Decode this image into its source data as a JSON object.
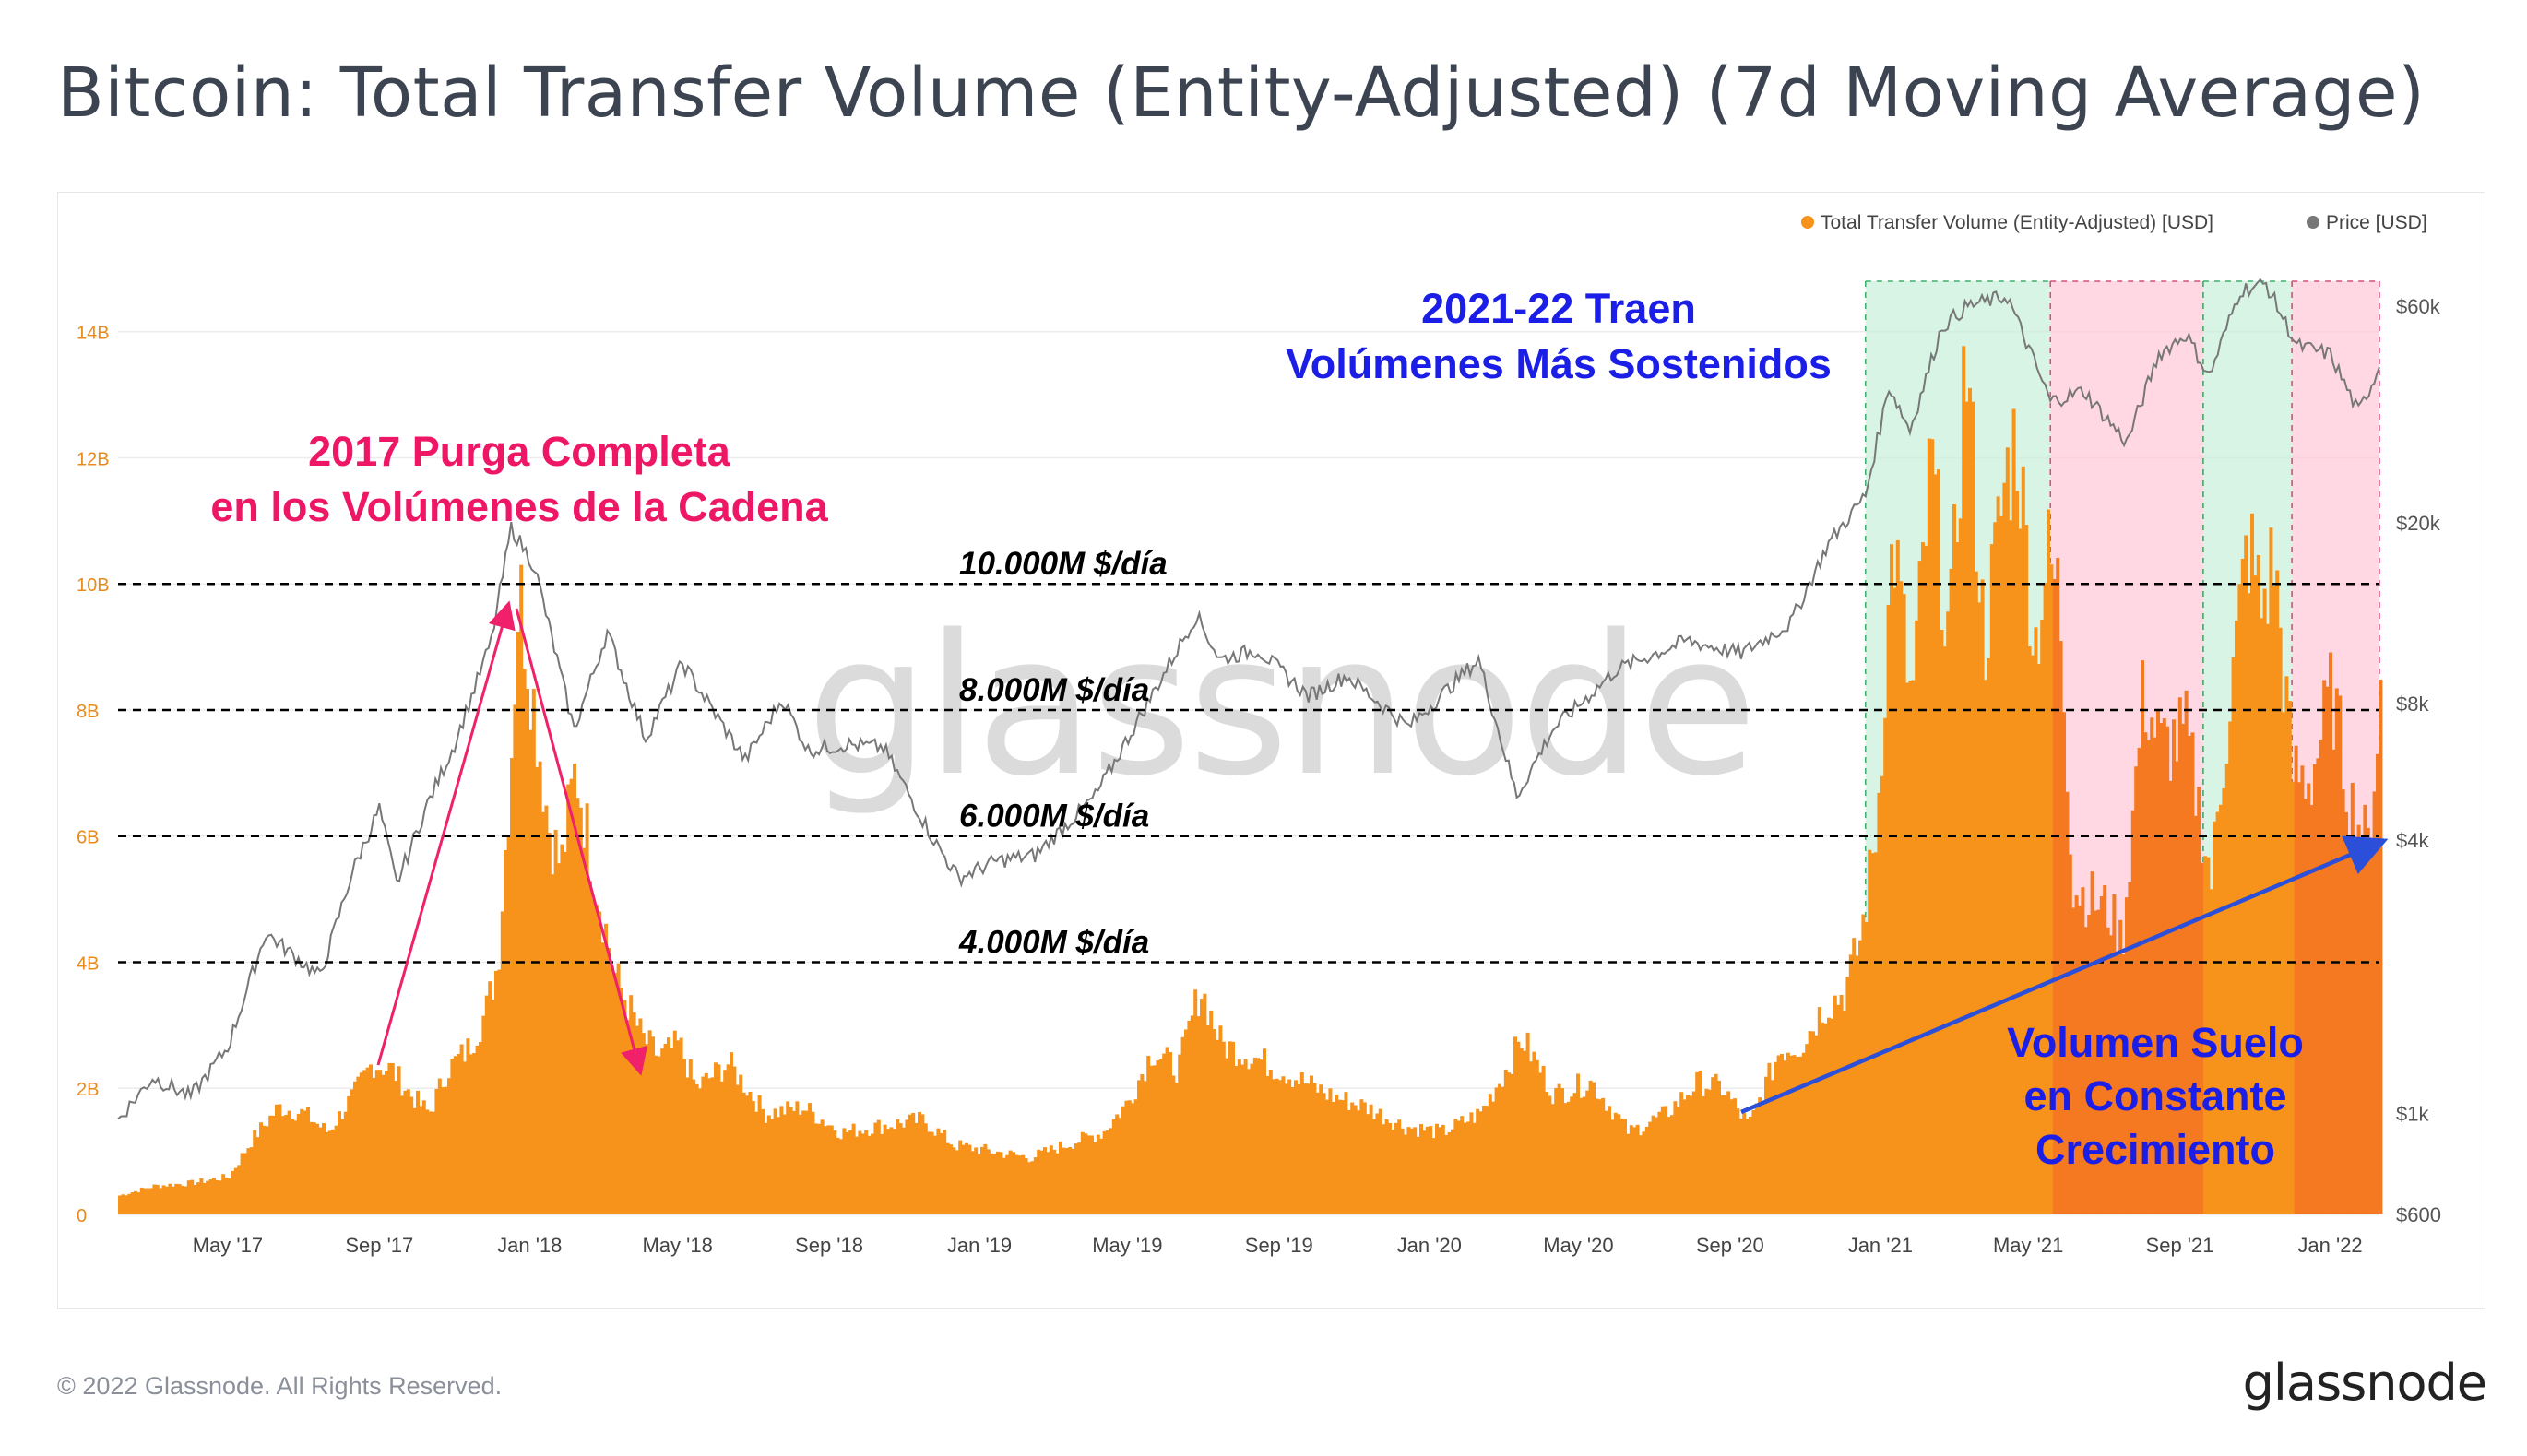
{
  "title": "Bitcoin: Total Transfer Volume (Entity-Adjusted) (7d Moving Average)",
  "footer": {
    "copyright": "© 2022 Glassnode. All Rights Reserved.",
    "brand": "glassnode"
  },
  "watermark": "glassnode",
  "colors": {
    "volume": "#f7931a",
    "volume_dark": "#f47920",
    "price": "#777777",
    "green_band": "#c8f0d9",
    "pink_band": "#ffc7d9",
    "red_text": "#ee1766",
    "blue_text": "#1b1ee6",
    "trend_arrow": "#2b4fd8",
    "pink_arrow": "#f0206b"
  },
  "chart_data": {
    "type": "bar",
    "x_axis": {
      "tick_labels": [
        "May '17",
        "Sep '17",
        "Jan '18",
        "May '18",
        "Sep '18",
        "Jan '19",
        "May '19",
        "Sep '19",
        "Jan '20",
        "May '20",
        "Sep '20",
        "Jan '21",
        "May '21",
        "Sep '21",
        "Jan '22"
      ],
      "range": [
        "2017-02-01",
        "2022-02-10"
      ]
    },
    "y_left": {
      "tick_labels": [
        "0",
        "2B",
        "4B",
        "6B",
        "8B",
        "10B",
        "12B",
        "14B"
      ],
      "ticks": [
        0,
        2,
        4,
        6,
        8,
        10,
        12,
        14
      ],
      "unit": "B USD",
      "range": [
        0,
        14.8
      ]
    },
    "y_right": {
      "tick_labels": [
        "$600",
        "$1k",
        "$4k",
        "$8k",
        "$20k",
        "$60k"
      ],
      "ticks": [
        600,
        1000,
        4000,
        8000,
        20000,
        60000
      ],
      "scale": "log",
      "range": [
        600,
        68000
      ]
    },
    "legend": {
      "placement": "top-right",
      "items": [
        {
          "name": "Total Transfer Volume (Entity-Adjusted) [USD]",
          "color": "#f7931a"
        },
        {
          "name": "Price [USD]",
          "color": "#777777"
        }
      ]
    },
    "series": [
      {
        "name": "Total Transfer Volume (Entity-Adjusted) [USD]",
        "axis": "left",
        "unit": "B",
        "points": [
          [
            "2017-02-01",
            0.3
          ],
          [
            "2017-03-01",
            0.45
          ],
          [
            "2017-04-01",
            0.5
          ],
          [
            "2017-05-01",
            0.6
          ],
          [
            "2017-05-20",
            1.2
          ],
          [
            "2017-06-10",
            1.7
          ],
          [
            "2017-07-01",
            1.6
          ],
          [
            "2017-07-20",
            1.3
          ],
          [
            "2017-08-10",
            1.9
          ],
          [
            "2017-08-25",
            2.4
          ],
          [
            "2017-09-10",
            2.3
          ],
          [
            "2017-09-25",
            1.9
          ],
          [
            "2017-10-10",
            1.6
          ],
          [
            "2017-10-25",
            2.3
          ],
          [
            "2017-11-10",
            2.6
          ],
          [
            "2017-11-25",
            3.2
          ],
          [
            "2017-12-05",
            4.0
          ],
          [
            "2017-12-15",
            7.0
          ],
          [
            "2017-12-22",
            10.0
          ],
          [
            "2018-01-05",
            7.8
          ],
          [
            "2018-01-15",
            6.2
          ],
          [
            "2018-01-25",
            5.5
          ],
          [
            "2018-02-06",
            7.1
          ],
          [
            "2018-02-20",
            5.5
          ],
          [
            "2018-03-10",
            3.8
          ],
          [
            "2018-04-01",
            2.8
          ],
          [
            "2018-04-15",
            2.5
          ],
          [
            "2018-05-01",
            2.7
          ],
          [
            "2018-05-15",
            2.0
          ],
          [
            "2018-06-10",
            2.4
          ],
          [
            "2018-07-10",
            1.6
          ],
          [
            "2018-08-10",
            1.7
          ],
          [
            "2018-09-10",
            1.3
          ],
          [
            "2018-10-10",
            1.4
          ],
          [
            "2018-11-15",
            1.5
          ],
          [
            "2018-12-10",
            1.1
          ],
          [
            "2019-01-10",
            1.0
          ],
          [
            "2019-02-10",
            0.9
          ],
          [
            "2019-03-10",
            1.1
          ],
          [
            "2019-04-10",
            1.3
          ],
          [
            "2019-05-01",
            1.8
          ],
          [
            "2019-05-20",
            2.6
          ],
          [
            "2019-06-10",
            2.3
          ],
          [
            "2019-06-28",
            3.6
          ],
          [
            "2019-07-15",
            2.7
          ],
          [
            "2019-08-10",
            2.5
          ],
          [
            "2019-09-10",
            2.2
          ],
          [
            "2019-10-10",
            1.9
          ],
          [
            "2019-11-10",
            1.7
          ],
          [
            "2019-12-10",
            1.4
          ],
          [
            "2020-01-10",
            1.3
          ],
          [
            "2020-02-10",
            1.6
          ],
          [
            "2020-03-05",
            2.4
          ],
          [
            "2020-03-15",
            2.8
          ],
          [
            "2020-04-10",
            1.9
          ],
          [
            "2020-05-10",
            2.1
          ],
          [
            "2020-06-10",
            1.3
          ],
          [
            "2020-07-10",
            1.6
          ],
          [
            "2020-08-05",
            2.1
          ],
          [
            "2020-08-25",
            2.0
          ],
          [
            "2020-09-15",
            1.4
          ],
          [
            "2020-10-10",
            2.6
          ],
          [
            "2020-10-28",
            2.7
          ],
          [
            "2020-11-15",
            3.3
          ],
          [
            "2020-12-01",
            3.5
          ],
          [
            "2020-12-15",
            4.4
          ],
          [
            "2020-12-28",
            6.2
          ],
          [
            "2021-01-10",
            10.8
          ],
          [
            "2021-01-25",
            8.0
          ],
          [
            "2021-02-10",
            11.9
          ],
          [
            "2021-02-25",
            9.0
          ],
          [
            "2021-03-10",
            13.7
          ],
          [
            "2021-03-25",
            9.0
          ],
          [
            "2021-04-10",
            11.5
          ],
          [
            "2021-04-20",
            12.4
          ],
          [
            "2021-05-05",
            9.0
          ],
          [
            "2021-05-15",
            10.4
          ],
          [
            "2021-05-25",
            9.8
          ],
          [
            "2021-06-05",
            5.2
          ],
          [
            "2021-06-20",
            5.0
          ],
          [
            "2021-07-05",
            4.8
          ],
          [
            "2021-07-15",
            4.3
          ],
          [
            "2021-08-01",
            8.3
          ],
          [
            "2021-08-15",
            7.4
          ],
          [
            "2021-09-05",
            7.6
          ],
          [
            "2021-09-25",
            5.3
          ],
          [
            "2021-10-05",
            7.2
          ],
          [
            "2021-10-25",
            10.7
          ],
          [
            "2021-11-05",
            9.6
          ],
          [
            "2021-11-15",
            10.4
          ],
          [
            "2021-11-30",
            7.0
          ],
          [
            "2021-12-15",
            6.9
          ],
          [
            "2022-01-01",
            8.3
          ],
          [
            "2022-01-15",
            6.6
          ],
          [
            "2022-01-31",
            5.8
          ],
          [
            "2022-02-10",
            8.4
          ]
        ]
      },
      {
        "name": "Price [USD]",
        "axis": "right",
        "unit": "USD",
        "points": [
          [
            "2017-02-01",
            970
          ],
          [
            "2017-03-01",
            1200
          ],
          [
            "2017-04-01",
            1090
          ],
          [
            "2017-05-01",
            1400
          ],
          [
            "2017-06-01",
            2500
          ],
          [
            "2017-07-15",
            2000
          ],
          [
            "2017-08-10",
            3400
          ],
          [
            "2017-09-01",
            4700
          ],
          [
            "2017-09-15",
            3200
          ],
          [
            "2017-10-10",
            4800
          ],
          [
            "2017-11-01",
            6500
          ],
          [
            "2017-12-01",
            11000
          ],
          [
            "2017-12-17",
            19500
          ],
          [
            "2018-01-05",
            16000
          ],
          [
            "2018-02-06",
            7000
          ],
          [
            "2018-03-05",
            11500
          ],
          [
            "2018-04-05",
            6700
          ],
          [
            "2018-05-05",
            9800
          ],
          [
            "2018-06-25",
            6000
          ],
          [
            "2018-07-25",
            8200
          ],
          [
            "2018-08-15",
            6300
          ],
          [
            "2018-09-15",
            6500
          ],
          [
            "2018-10-15",
            6400
          ],
          [
            "2018-11-25",
            4000
          ],
          [
            "2018-12-15",
            3300
          ],
          [
            "2019-01-15",
            3600
          ],
          [
            "2019-02-15",
            3700
          ],
          [
            "2019-04-05",
            5000
          ],
          [
            "2019-05-15",
            7800
          ],
          [
            "2019-06-26",
            12500
          ],
          [
            "2019-07-15",
            10000
          ],
          [
            "2019-08-15",
            10500
          ],
          [
            "2019-09-25",
            8300
          ],
          [
            "2019-10-26",
            9200
          ],
          [
            "2019-12-15",
            7100
          ],
          [
            "2020-02-10",
            10000
          ],
          [
            "2020-03-12",
            5000
          ],
          [
            "2020-04-10",
            7000
          ],
          [
            "2020-06-01",
            9500
          ],
          [
            "2020-07-28",
            11000
          ],
          [
            "2020-09-10",
            10300
          ],
          [
            "2020-10-20",
            12000
          ],
          [
            "2020-11-20",
            18000
          ],
          [
            "2020-12-20",
            23000
          ],
          [
            "2021-01-08",
            40000
          ],
          [
            "2021-01-25",
            32000
          ],
          [
            "2021-02-20",
            54000
          ],
          [
            "2021-03-13",
            60000
          ],
          [
            "2021-04-14",
            63000
          ],
          [
            "2021-05-19",
            37000
          ],
          [
            "2021-06-15",
            39000
          ],
          [
            "2021-07-20",
            30000
          ],
          [
            "2021-08-15",
            47000
          ],
          [
            "2021-09-06",
            52000
          ],
          [
            "2021-09-25",
            42000
          ],
          [
            "2021-10-20",
            65000
          ],
          [
            "2021-11-10",
            67000
          ],
          [
            "2021-12-05",
            49000
          ],
          [
            "2022-01-01",
            47000
          ],
          [
            "2022-01-24",
            35000
          ],
          [
            "2022-02-10",
            44000
          ]
        ]
      }
    ],
    "reference_lines": [
      {
        "y": 10,
        "label": "10.000M $/día"
      },
      {
        "y": 8,
        "label": "8.000M $/día"
      },
      {
        "y": 6,
        "label": "6.000M $/día"
      },
      {
        "y": 4,
        "label": "4.000M $/día"
      }
    ],
    "bands": [
      {
        "from": "2020-12-20",
        "to": "2021-05-19",
        "kind": "green"
      },
      {
        "from": "2021-05-19",
        "to": "2021-09-20",
        "kind": "pink"
      },
      {
        "from": "2021-09-20",
        "to": "2021-12-01",
        "kind": "green"
      },
      {
        "from": "2021-12-01",
        "to": "2022-02-10",
        "kind": "pink"
      }
    ],
    "annotations": [
      {
        "lines": [
          "2017 Purga Completa",
          "en los Volúmenes de la Cadena"
        ],
        "color": "red"
      },
      {
        "lines": [
          "2021-22 Traen",
          "Volúmenes Más Sostenidos"
        ],
        "color": "blue"
      },
      {
        "lines": [
          "Volumen Suelo",
          "en Constante",
          "Crecimiento"
        ],
        "color": "blue"
      }
    ]
  }
}
